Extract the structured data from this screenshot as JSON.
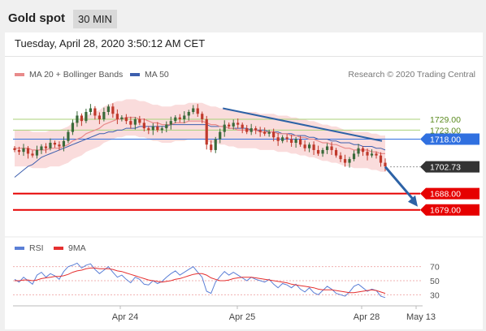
{
  "header": {
    "symbol": "Gold spot",
    "interval": "30 MIN"
  },
  "timestamp": "Tuesday, April 28, 2020 3:50:12 AM CET",
  "legend": {
    "ma20": "MA 20 + Bollinger Bands",
    "ma50": "MA 50",
    "credit": "Research © 2020 Trading Central"
  },
  "rsi_legend": {
    "rsi": "RSI",
    "ma9": "9MA"
  },
  "colors": {
    "candle_up": "#3a6a3a",
    "candle_down": "#c0392b",
    "ma20": "#e88a8a",
    "ma50": "#3d5fae",
    "band_fill": "#f9d3d3",
    "resistance": "#a8d27a",
    "pivot": "#3070e0",
    "support": "#e60000",
    "current": "#333333",
    "arrow": "#2d62a6",
    "rsi": "#5b7fd6",
    "rsi_ma": "#e53030"
  },
  "chart_data": {
    "type": "candlestick",
    "price_axis": {
      "ylim": [
        1665,
        1750
      ]
    },
    "x_labels": [
      "Apr 24",
      "Apr 25",
      "Apr 28",
      "May 13"
    ],
    "levels": [
      {
        "price": 1729.0,
        "label": "1729.00",
        "kind": "resistance"
      },
      {
        "price": 1723.0,
        "label": "1723.00",
        "kind": "resistance"
      },
      {
        "price": 1718.0,
        "label": "1718.00",
        "kind": "pivot"
      },
      {
        "price": 1702.73,
        "label": "1702.73",
        "kind": "current"
      },
      {
        "price": 1688.0,
        "label": "1688.00",
        "kind": "support"
      },
      {
        "price": 1679.0,
        "label": "1679.00",
        "kind": "support"
      }
    ],
    "close_series": [
      1712,
      1711,
      1713,
      1710,
      1709,
      1712,
      1714,
      1713,
      1716,
      1715,
      1714,
      1717,
      1722,
      1727,
      1731,
      1728,
      1733,
      1735,
      1731,
      1729,
      1733,
      1736,
      1732,
      1729,
      1730,
      1728,
      1726,
      1729,
      1727,
      1724,
      1723,
      1725,
      1723,
      1724,
      1726,
      1728,
      1730,
      1729,
      1731,
      1733,
      1735,
      1732,
      1729,
      1715,
      1712,
      1718,
      1722,
      1726,
      1725,
      1727,
      1726,
      1724,
      1722,
      1724,
      1723,
      1722,
      1721,
      1722,
      1719,
      1717,
      1719,
      1718,
      1716,
      1718,
      1715,
      1713,
      1715,
      1712,
      1710,
      1712,
      1714,
      1712,
      1709,
      1707,
      1705,
      1707,
      1710,
      1713,
      1711,
      1709,
      1710,
      1709,
      1705,
      1703
    ],
    "ma20_series": [
      1713,
      1713,
      1713,
      1713,
      1712,
      1712,
      1712,
      1712,
      1713,
      1713,
      1713,
      1714,
      1715,
      1717,
      1718,
      1719,
      1721,
      1722,
      1723,
      1724,
      1726,
      1727,
      1728,
      1729,
      1729,
      1730,
      1730,
      1730,
      1729,
      1729,
      1728,
      1727,
      1727,
      1726,
      1726,
      1726,
      1727,
      1727,
      1727,
      1728,
      1728,
      1728,
      1728,
      1727,
      1726,
      1726,
      1725,
      1725,
      1724,
      1724,
      1723,
      1723,
      1723,
      1723,
      1723,
      1722,
      1722,
      1722,
      1722,
      1721,
      1721,
      1721,
      1720,
      1720,
      1719,
      1719,
      1718,
      1718,
      1717,
      1716,
      1716,
      1715,
      1715,
      1714,
      1713,
      1713,
      1712,
      1712,
      1712,
      1712,
      1711,
      1711,
      1710,
      1710
    ],
    "band_width": 10,
    "ma50_series": [
      1697,
      1699,
      1701,
      1703,
      1704,
      1706,
      1708,
      1709,
      1710,
      1711,
      1712,
      1713,
      1714,
      1715,
      1716,
      1717,
      1718,
      1719,
      1720,
      1721,
      1721,
      1722,
      1722,
      1723,
      1723,
      1724,
      1724,
      1724,
      1725,
      1725,
      1725,
      1725,
      1725,
      1725,
      1725,
      1726,
      1726,
      1726,
      1726,
      1726,
      1726,
      1726,
      1726,
      1726,
      1725,
      1725,
      1725,
      1725,
      1724,
      1724,
      1724,
      1724,
      1724,
      1723,
      1723,
      1723,
      1723,
      1722,
      1722,
      1722,
      1721,
      1721,
      1721,
      1720,
      1720,
      1720,
      1719,
      1719,
      1718,
      1718,
      1718,
      1717,
      1717,
      1716,
      1716,
      1716,
      1715,
      1715,
      1714,
      1714,
      1714,
      1713,
      1713,
      1712
    ],
    "trendline": [
      {
        "i": 43,
        "price": 1735
      },
      {
        "i": 83,
        "price": 1717
      }
    ],
    "forecast_arrow": {
      "from_price": 1702.73,
      "to_price": 1679.0
    },
    "rsi": {
      "ticks": [
        70,
        50,
        30
      ],
      "ylim": [
        20,
        80
      ],
      "rsi_series": [
        52,
        48,
        55,
        50,
        45,
        58,
        62,
        55,
        60,
        57,
        52,
        63,
        70,
        72,
        75,
        68,
        72,
        74,
        66,
        60,
        65,
        70,
        62,
        55,
        58,
        52,
        47,
        55,
        52,
        45,
        44,
        50,
        46,
        49,
        55,
        60,
        64,
        58,
        62,
        66,
        70,
        62,
        55,
        35,
        32,
        48,
        56,
        63,
        58,
        62,
        58,
        54,
        50,
        55,
        52,
        50,
        48,
        52,
        45,
        40,
        46,
        44,
        40,
        45,
        38,
        34,
        40,
        33,
        30,
        36,
        42,
        38,
        32,
        30,
        28,
        34,
        42,
        45,
        40,
        35,
        38,
        36,
        28,
        26
      ],
      "ma_series": [
        50,
        50,
        51,
        51,
        50,
        51,
        53,
        54,
        55,
        56,
        56,
        57,
        59,
        62,
        64,
        65,
        67,
        68,
        68,
        67,
        67,
        67,
        66,
        64,
        63,
        61,
        59,
        57,
        55,
        53,
        51,
        50,
        49,
        48,
        49,
        50,
        52,
        53,
        55,
        57,
        59,
        60,
        60,
        58,
        54,
        52,
        50,
        50,
        51,
        53,
        54,
        55,
        55,
        55,
        54,
        53,
        52,
        51,
        50,
        49,
        48,
        47,
        45,
        44,
        43,
        42,
        41,
        40,
        38,
        37,
        37,
        37,
        36,
        35,
        34,
        33,
        33,
        34,
        35,
        36,
        37,
        36,
        34,
        32
      ]
    }
  }
}
